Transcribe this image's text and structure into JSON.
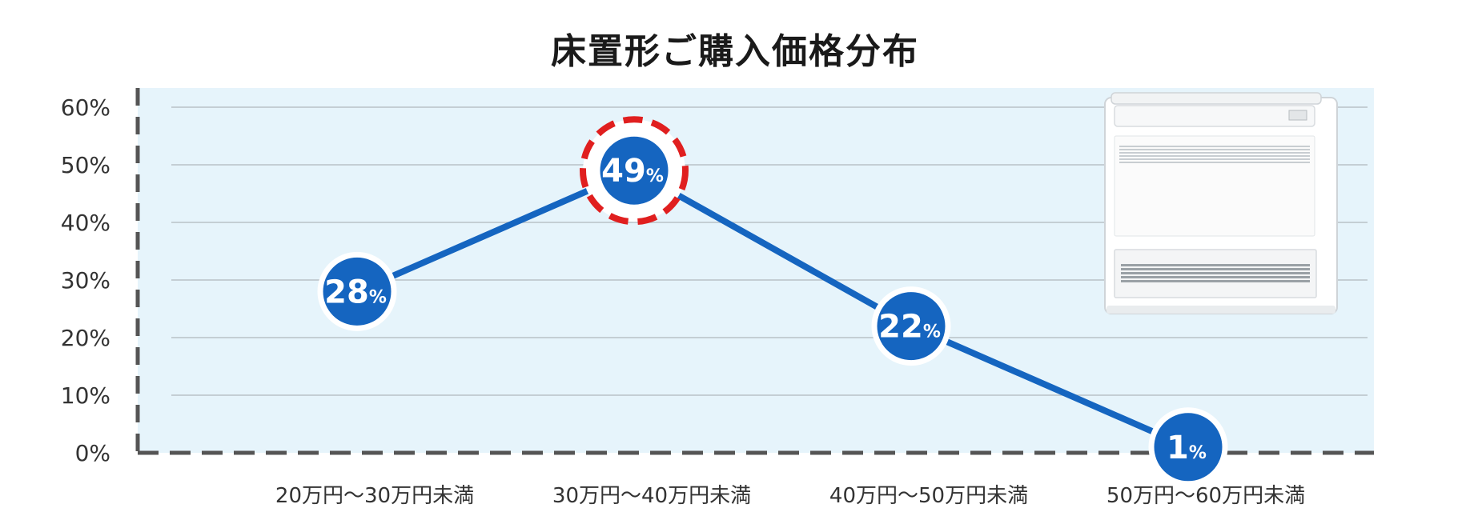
{
  "chart_data": {
    "type": "line",
    "title": "床置形ご購入価格分布",
    "categories": [
      "20万円〜30万円未満",
      "30万円〜40万円未満",
      "40万円〜50万円未満",
      "50万円〜60万円未満"
    ],
    "series": [
      {
        "values": [
          28,
          49,
          22,
          1
        ]
      }
    ],
    "y_ticks": [
      "0%",
      "10%",
      "20%",
      "30%",
      "40%",
      "50%",
      "60%"
    ],
    "ylim": [
      0,
      60
    ],
    "value_suffix": "%",
    "grid": true,
    "highlight_index": 1,
    "colors": {
      "line": "#1565c0",
      "marker": "#1565c0",
      "marker_ring": "#ffffff",
      "highlight_ring": "#e01f1f",
      "plot_background": "#e6f4fb",
      "grid": "#b8c2c8",
      "axis": "#555555"
    }
  }
}
